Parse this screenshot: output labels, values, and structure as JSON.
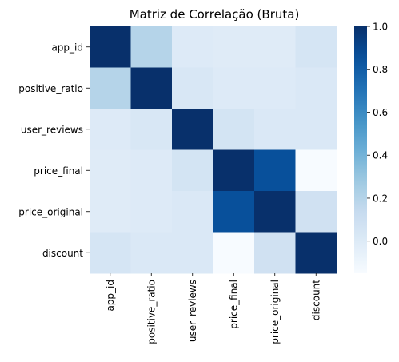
{
  "chart_data": {
    "type": "heatmap",
    "title": "Matriz de Correlação (Bruta)",
    "xlabel": "",
    "ylabel": "",
    "x_categories": [
      "app_id",
      "positive_ratio",
      "user_reviews",
      "price_final",
      "price_original",
      "discount"
    ],
    "y_categories": [
      "app_id",
      "positive_ratio",
      "user_reviews",
      "price_final",
      "price_original",
      "discount"
    ],
    "values": [
      [
        1.0,
        0.2,
        0.0,
        -0.01,
        -0.01,
        0.05
      ],
      [
        0.2,
        1.0,
        0.03,
        0.0,
        0.0,
        0.02
      ],
      [
        0.0,
        0.03,
        1.0,
        0.06,
        0.02,
        0.02
      ],
      [
        -0.01,
        0.0,
        0.06,
        1.0,
        0.86,
        -0.15
      ],
      [
        -0.01,
        0.0,
        0.02,
        0.86,
        1.0,
        0.08
      ],
      [
        0.05,
        0.02,
        0.02,
        -0.15,
        0.08,
        1.0
      ]
    ],
    "colorbar": {
      "colormap": "Blues",
      "vmin": -0.15,
      "vmax": 1.0,
      "ticks": [
        0.0,
        0.2,
        0.4,
        0.6,
        0.8,
        1.0
      ],
      "tick_labels": [
        "0.0",
        "0.2",
        "0.4",
        "0.6",
        "0.8",
        "1.0"
      ]
    },
    "grid": false,
    "legend": "colorbar-right"
  }
}
